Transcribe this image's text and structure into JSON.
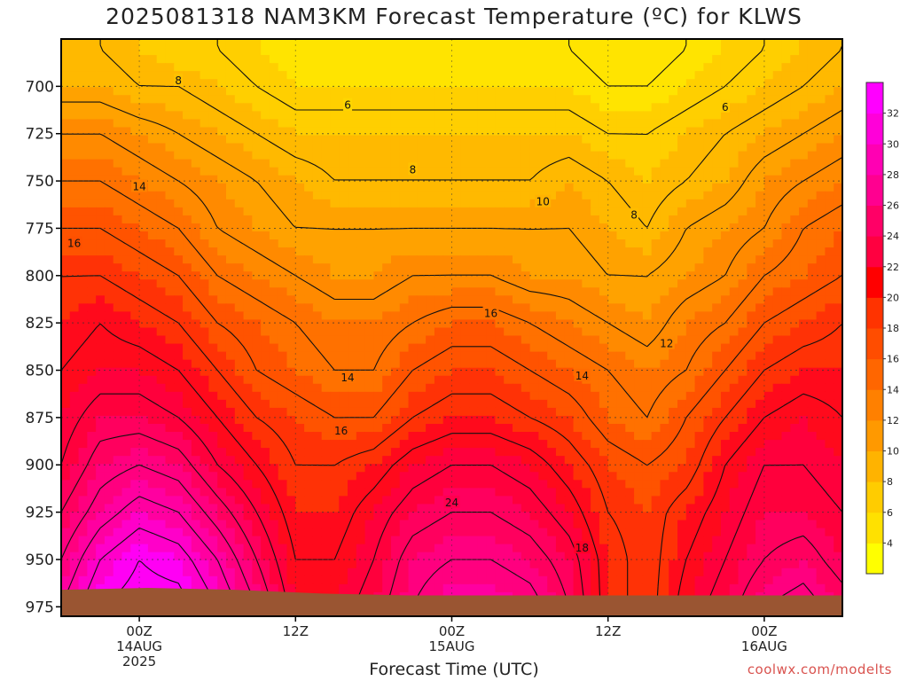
{
  "header": {
    "title": "2025081318 NAM3KM Forecast Temperature (ºC) for KLWS"
  },
  "footer": {
    "xlabel": "Forecast Time (UTC)",
    "watermark": "coolwx.com/modelts"
  },
  "chart_data": {
    "type": "heatmap",
    "title": "2025081318 NAM3KM Forecast Temperature (ºC) for KLWS",
    "xlabel": "Forecast Time (UTC)",
    "ylabel": "",
    "x_unit": "forecast hour from 2025-08-13 18Z",
    "xlim": [
      0,
      60
    ],
    "ylim_hPa": [
      980,
      675
    ],
    "y_ticks": [
      700,
      725,
      750,
      775,
      800,
      825,
      850,
      875,
      900,
      925,
      950,
      975
    ],
    "x_ticks": [
      {
        "hour": 6,
        "lines": [
          "00Z",
          "14AUG",
          "2025"
        ]
      },
      {
        "hour": 18,
        "lines": [
          "12Z"
        ]
      },
      {
        "hour": 30,
        "lines": [
          "00Z",
          "15AUG"
        ]
      },
      {
        "hour": 42,
        "lines": [
          "12Z"
        ]
      },
      {
        "hour": 54,
        "lines": [
          "00Z",
          "16AUG"
        ]
      }
    ],
    "grid": true,
    "contour_interval": 2,
    "colorbar": {
      "ticks": [
        4,
        6,
        8,
        10,
        12,
        14,
        16,
        18,
        20,
        22,
        24,
        26,
        28,
        30,
        32
      ],
      "colors": [
        "#ffff00",
        "#ffe100",
        "#ffcc00",
        "#ffb300",
        "#ff9900",
        "#ff8000",
        "#ff6600",
        "#ff4d00",
        "#ff3300",
        "#ff0000",
        "#ff0040",
        "#ff0066",
        "#ff0090",
        "#ff00b3",
        "#ff00d9",
        "#ff00ff"
      ]
    },
    "colormap_stops": [
      {
        "t": 2,
        "color": "#ffff00"
      },
      {
        "t": 6,
        "color": "#ffd400"
      },
      {
        "t": 10,
        "color": "#ffa800"
      },
      {
        "t": 14,
        "color": "#ff7800"
      },
      {
        "t": 18,
        "color": "#ff3c00"
      },
      {
        "t": 21,
        "color": "#ff0022"
      },
      {
        "t": 25,
        "color": "#ff0066"
      },
      {
        "t": 29,
        "color": "#ff00a8"
      },
      {
        "t": 33,
        "color": "#ff00ff"
      }
    ],
    "hours": [
      0,
      3,
      6,
      9,
      12,
      15,
      18,
      21,
      24,
      27,
      30,
      33,
      36,
      39,
      42,
      45,
      48,
      51,
      54,
      57,
      60
    ],
    "levels_hPa": [
      680,
      700,
      725,
      750,
      775,
      800,
      825,
      850,
      875,
      900,
      925,
      950,
      975
    ],
    "temperature_c": [
      [
        8,
        8,
        7,
        6,
        6,
        5,
        4,
        4,
        4,
        4,
        4,
        4,
        4,
        4,
        3,
        3,
        4,
        5,
        6,
        7,
        8
      ],
      [
        9,
        9,
        8,
        8,
        7,
        6,
        5,
        5,
        5,
        5,
        5,
        5,
        5,
        5,
        4,
        4,
        5,
        6,
        7,
        8,
        9
      ],
      [
        12,
        12,
        11,
        10,
        9,
        8,
        7,
        7,
        7,
        7,
        7,
        7,
        7,
        7,
        6,
        6,
        7,
        8,
        9,
        10,
        11
      ],
      [
        14,
        14,
        13,
        12,
        11,
        10,
        9,
        8,
        8,
        8,
        8,
        8,
        8,
        9,
        8,
        7,
        8,
        9,
        11,
        12,
        13
      ],
      [
        16,
        16,
        15,
        14,
        12,
        11,
        10,
        10,
        10,
        10,
        10,
        10,
        10,
        10,
        9,
        8,
        10,
        11,
        12,
        14,
        15
      ],
      [
        18,
        18,
        17,
        16,
        14,
        13,
        12,
        11,
        11,
        12,
        12,
        12,
        11,
        11,
        10,
        10,
        11,
        12,
        14,
        15,
        16
      ],
      [
        19,
        20,
        19,
        18,
        16,
        15,
        14,
        13,
        13,
        14,
        15,
        15,
        14,
        13,
        12,
        11,
        13,
        14,
        16,
        17,
        18
      ],
      [
        20,
        21,
        21,
        20,
        18,
        16,
        15,
        14,
        14,
        16,
        17,
        17,
        16,
        15,
        14,
        13,
        14,
        16,
        18,
        19,
        19
      ],
      [
        21,
        23,
        23,
        22,
        20,
        18,
        17,
        16,
        16,
        18,
        19,
        19,
        18,
        17,
        15,
        14,
        16,
        18,
        20,
        21,
        20
      ],
      [
        22,
        25,
        26,
        25,
        22,
        20,
        18,
        18,
        19,
        21,
        22,
        22,
        21,
        19,
        17,
        16,
        17,
        20,
        22,
        22,
        21
      ],
      [
        24,
        27,
        29,
        28,
        25,
        22,
        19,
        19,
        21,
        23,
        24,
        24,
        23,
        21,
        18,
        17,
        19,
        21,
        23,
        23,
        22
      ],
      [
        26,
        30,
        32,
        31,
        28,
        24,
        20,
        20,
        22,
        25,
        26,
        26,
        25,
        23,
        19,
        17,
        20,
        22,
        24,
        25,
        23
      ],
      [
        28,
        32,
        33,
        33,
        30,
        26,
        21,
        21,
        23,
        26,
        28,
        28,
        27,
        24,
        19,
        17,
        21,
        23,
        26,
        27,
        25
      ]
    ],
    "contour_labels": [
      {
        "text": "8",
        "hour": 9.0,
        "p": 697
      },
      {
        "text": "6",
        "hour": 22.0,
        "p": 710
      },
      {
        "text": "6",
        "hour": 51.0,
        "p": 711
      },
      {
        "text": "8",
        "hour": 27.0,
        "p": 744
      },
      {
        "text": "14",
        "hour": 6.0,
        "p": 753
      },
      {
        "text": "10",
        "hour": 37.0,
        "p": 761
      },
      {
        "text": "8",
        "hour": 44.0,
        "p": 768
      },
      {
        "text": "16",
        "hour": 1.0,
        "p": 783
      },
      {
        "text": "16",
        "hour": 33.0,
        "p": 820
      },
      {
        "text": "12",
        "hour": 46.5,
        "p": 836
      },
      {
        "text": "14",
        "hour": 22.0,
        "p": 854
      },
      {
        "text": "14",
        "hour": 40.0,
        "p": 853
      },
      {
        "text": "16",
        "hour": 21.5,
        "p": 882
      },
      {
        "text": "24",
        "hour": 30.0,
        "p": 920
      },
      {
        "text": "18",
        "hour": 40.0,
        "p": 944
      }
    ],
    "terrain_color": "#9a5532"
  }
}
